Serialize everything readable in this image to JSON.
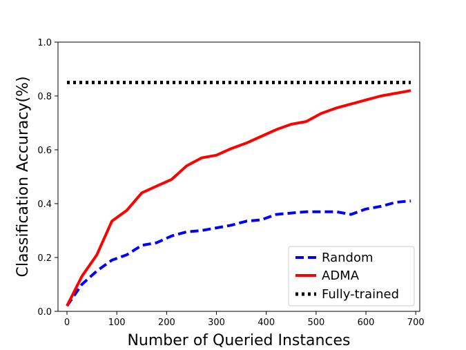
{
  "chart_data": {
    "type": "line",
    "title": "",
    "xlabel": "Number of Queried Instances",
    "ylabel": "Classification Accuracy(%)",
    "xlim": [
      -18,
      708
    ],
    "ylim": [
      0.0,
      1.0
    ],
    "xticks": [
      0,
      100,
      200,
      300,
      400,
      500,
      600,
      700
    ],
    "yticks": [
      0.0,
      0.2,
      0.4,
      0.6,
      0.8,
      1.0
    ],
    "xtick_labels": [
      "0",
      "100",
      "200",
      "300",
      "400",
      "500",
      "600",
      "700"
    ],
    "ytick_labels": [
      "0.0",
      "0.2",
      "0.4",
      "0.6",
      "0.8",
      "1.0"
    ],
    "grid": false,
    "legend_position": "lower-right",
    "series": [
      {
        "name": "Random",
        "color": "#0000ff",
        "style": "dashed",
        "x": [
          0,
          30,
          60,
          90,
          120,
          150,
          180,
          210,
          240,
          270,
          300,
          330,
          360,
          390,
          420,
          450,
          480,
          510,
          540,
          570,
          600,
          630,
          660,
          690
        ],
        "y": [
          0.02,
          0.1,
          0.15,
          0.19,
          0.21,
          0.245,
          0.255,
          0.28,
          0.295,
          0.3,
          0.31,
          0.32,
          0.335,
          0.34,
          0.36,
          0.365,
          0.37,
          0.37,
          0.37,
          0.36,
          0.38,
          0.39,
          0.405,
          0.41
        ]
      },
      {
        "name": "ADMA",
        "color": "#ff0000",
        "style": "solid",
        "x": [
          0,
          30,
          60,
          90,
          120,
          150,
          180,
          210,
          240,
          270,
          300,
          330,
          360,
          390,
          420,
          450,
          480,
          510,
          540,
          570,
          600,
          630,
          660,
          690
        ],
        "y": [
          0.02,
          0.13,
          0.21,
          0.335,
          0.375,
          0.44,
          0.465,
          0.49,
          0.54,
          0.57,
          0.58,
          0.605,
          0.625,
          0.65,
          0.675,
          0.695,
          0.705,
          0.735,
          0.755,
          0.77,
          0.785,
          0.8,
          0.81,
          0.82
        ]
      },
      {
        "name": "Fully-trained",
        "color": "#000000",
        "style": "dotted",
        "x": [
          0,
          690
        ],
        "y": [
          0.85,
          0.85
        ]
      }
    ]
  }
}
